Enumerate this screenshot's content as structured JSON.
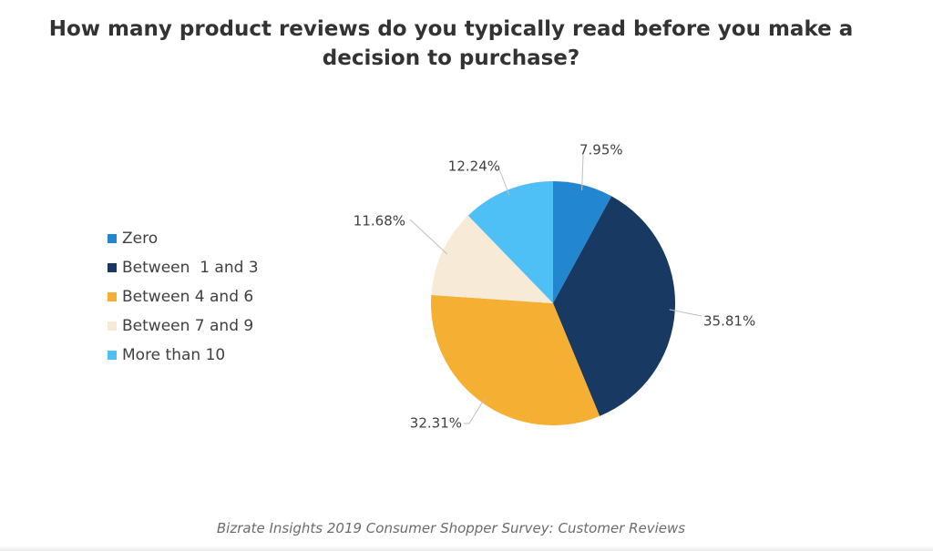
{
  "chart_data": {
    "type": "pie",
    "title": "How many product reviews do you typically read before you make a decision to purchase?",
    "source": "Bizrate Insights 2019 Consumer Shopper Survey: Customer Reviews",
    "legend_position": "left",
    "slices": [
      {
        "label": "Zero",
        "value": 7.95,
        "display": "7.95%",
        "color": "#2386d1"
      },
      {
        "label": "Between  1 and 3",
        "value": 35.81,
        "display": "35.81%",
        "color": "#183962"
      },
      {
        "label": "Between 4 and 6",
        "value": 32.31,
        "display": "32.31%",
        "color": "#f5af32"
      },
      {
        "label": "Between 7 and 9",
        "value": 11.68,
        "display": "11.68%",
        "color": "#f7ead7"
      },
      {
        "label": "More than 10",
        "value": 12.24,
        "display": "12.24%",
        "color": "#4fc0f5"
      }
    ]
  }
}
